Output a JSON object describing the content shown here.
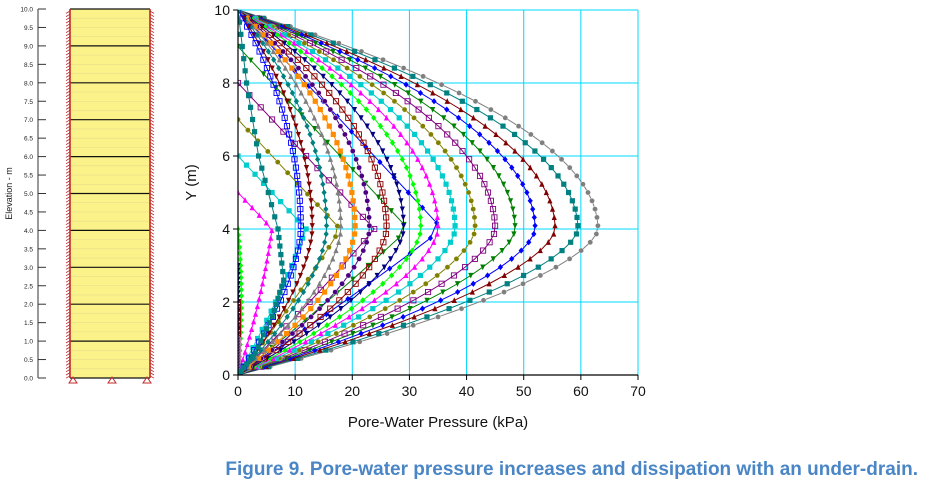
{
  "caption": "Figure 9.  Pore-water pressure increases and dissipation with an under-drain.",
  "colors": {
    "grid": "#00d8ff",
    "column_fill": "#fbf28a",
    "column_border": "#c0292b",
    "caption": "#4a86c6"
  },
  "chart_data": [
    {
      "type": "diagram",
      "name": "soil-column",
      "ylabel": "Elevation - m",
      "ylim": [
        0,
        10
      ],
      "ticks": [
        "0.0",
        "0.5",
        "1.0",
        "1.5",
        "2.0",
        "2.5",
        "3.0",
        "3.5",
        "4.0",
        "4.5",
        "5.0",
        "5.5",
        "6.0",
        "6.5",
        "7.0",
        "7.5",
        "8.0",
        "8.5",
        "9.0",
        "9.5",
        "10.0"
      ],
      "layer_boundaries": [
        0,
        1,
        2,
        3,
        4,
        5,
        6,
        7,
        8,
        9,
        10
      ]
    },
    {
      "type": "line",
      "xlabel": "Pore-Water Pressure (kPa)",
      "ylabel": "Y (m)",
      "xlim": [
        0,
        70
      ],
      "ylim": [
        0,
        10
      ],
      "xticks": [
        "0",
        "10",
        "20",
        "30",
        "40",
        "50",
        "60",
        "70"
      ],
      "yticks": [
        "0",
        "2",
        "4",
        "6",
        "8",
        "10"
      ],
      "grid": true,
      "peak_elevation": 4,
      "series_color_cycle": [
        "#7f7f7f",
        "#008080",
        "#800000",
        "#0000ff",
        "#008000",
        "#800080",
        "#808000",
        "#00cccc",
        "#ff00ff",
        "#00ff00",
        "#000080",
        "#8b0000",
        "#4b0082",
        "#ff8c00"
      ],
      "buildup_top_elevations": [
        10,
        9,
        8,
        7,
        6,
        5,
        4,
        3,
        2,
        1
      ],
      "buildup_slope": 0.98,
      "dissipation_peak_pressures": [
        63,
        59.5,
        55.5,
        52,
        48.5,
        45,
        41.5,
        38,
        35,
        32,
        29,
        26,
        23,
        20.5,
        18,
        15.5,
        13,
        11
      ],
      "left_boundary_curve": [
        [
          0,
          0
        ],
        [
          3,
          0.6
        ],
        [
          6,
          1.6
        ],
        [
          8,
          2.6
        ],
        [
          7,
          4
        ],
        [
          3.6,
          6
        ],
        [
          1.5,
          8
        ],
        [
          0,
          10
        ]
      ]
    }
  ]
}
